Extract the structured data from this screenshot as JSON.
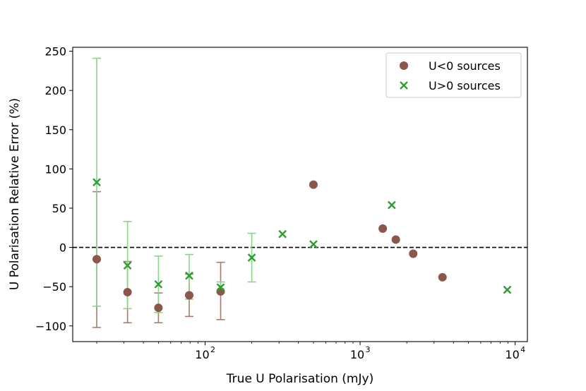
{
  "chart_data": {
    "type": "scatter",
    "title": "",
    "xlabel": "True U Polarisation (mJy)",
    "ylabel": "U Polarisation Relative Error (%)",
    "xscale": "log",
    "xlim": [
      14,
      12000
    ],
    "ylim": [
      -120,
      255
    ],
    "yticks": [
      -100,
      -50,
      0,
      50,
      100,
      150,
      200,
      250
    ],
    "ytick_labels": [
      "−100",
      "−50",
      "0",
      "50",
      "100",
      "150",
      "200",
      "250"
    ],
    "xticks": [
      {
        "value": 100,
        "base": "10",
        "exp": "2"
      },
      {
        "value": 1000,
        "base": "10",
        "exp": "3"
      },
      {
        "value": 10000,
        "base": "10",
        "exp": "4"
      }
    ],
    "reference_line": {
      "y": 0,
      "style": "dashed",
      "color": "#000000"
    },
    "legend": {
      "placement": "top-right"
    },
    "series": [
      {
        "name": "U<0 sources",
        "marker": "circle",
        "color": "#8c564b",
        "errcolor": "#a77b72",
        "points": [
          {
            "x": 20,
            "y": -15,
            "lo": -102,
            "hi": 71
          },
          {
            "x": 31.6,
            "y": -57,
            "lo": -96,
            "hi": -18
          },
          {
            "x": 50,
            "y": -77,
            "lo": -96,
            "hi": -58
          },
          {
            "x": 79,
            "y": -61,
            "lo": -88,
            "hi": -34
          },
          {
            "x": 126,
            "y": -56,
            "lo": -92,
            "hi": -19
          },
          {
            "x": 500,
            "y": 80
          },
          {
            "x": 1400,
            "y": 24
          },
          {
            "x": 1700,
            "y": 10
          },
          {
            "x": 2200,
            "y": -8
          },
          {
            "x": 3400,
            "y": -38
          }
        ]
      },
      {
        "name": "U>0 sources",
        "marker": "x",
        "color": "#2ca02c",
        "errcolor": "#8cd38c",
        "points": [
          {
            "x": 20,
            "y": 83,
            "lo": -75,
            "hi": 241
          },
          {
            "x": 31.6,
            "y": -23,
            "lo": -78,
            "hi": 33
          },
          {
            "x": 50,
            "y": -47,
            "lo": -83,
            "hi": -11
          },
          {
            "x": 79,
            "y": -36,
            "lo": -66,
            "hi": -9
          },
          {
            "x": 126,
            "y": -51,
            "lo": -58,
            "hi": -44
          },
          {
            "x": 200,
            "y": -13,
            "lo": -44,
            "hi": 18
          },
          {
            "x": 316,
            "y": 17
          },
          {
            "x": 500,
            "y": 4
          },
          {
            "x": 1600,
            "y": 54
          },
          {
            "x": 8900,
            "y": -54
          }
        ]
      }
    ]
  }
}
